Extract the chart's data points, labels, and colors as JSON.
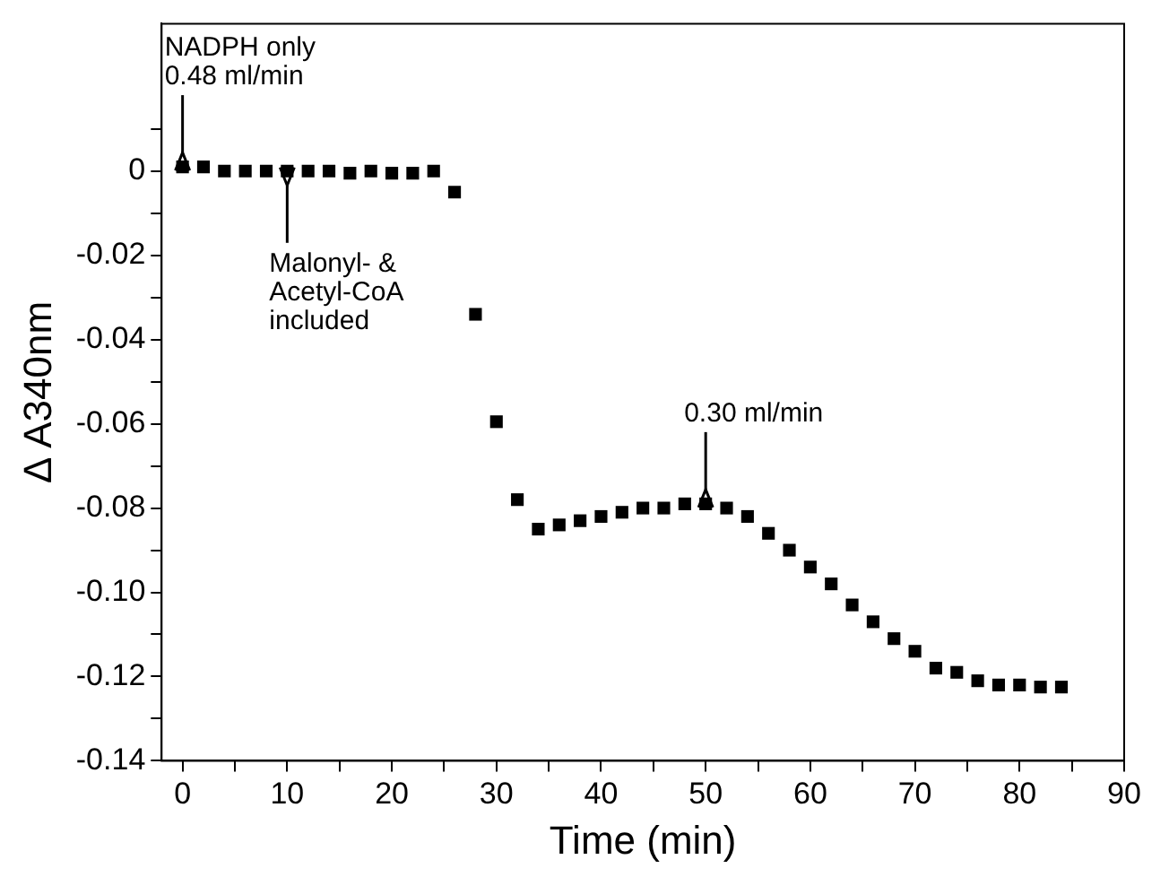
{
  "chart_data": {
    "type": "scatter",
    "xlabel": "Time (min)",
    "ylabel": "Δ A340nm",
    "x": [
      0,
      2,
      4,
      6,
      8,
      10,
      12,
      14,
      16,
      18,
      20,
      22,
      24,
      26,
      28,
      30,
      32,
      34,
      36,
      38,
      40,
      42,
      44,
      46,
      48,
      50,
      52,
      54,
      56,
      58,
      60,
      62,
      64,
      66,
      68,
      70,
      72,
      74,
      76,
      78,
      80,
      82,
      84
    ],
    "series": [
      {
        "color": "#000000",
        "values": [
          0.001,
          0.001,
          0,
          0,
          0,
          0,
          0,
          0,
          -0.0005,
          0,
          -0.0005,
          -0.0005,
          0,
          -0.005,
          -0.034,
          -0.0595,
          -0.078,
          -0.085,
          -0.084,
          -0.083,
          -0.082,
          -0.081,
          -0.08,
          -0.08,
          -0.079,
          -0.079,
          -0.08,
          -0.082,
          -0.086,
          -0.09,
          -0.094,
          -0.098,
          -0.103,
          -0.107,
          -0.111,
          -0.114,
          -0.118,
          -0.119,
          -0.121,
          -0.122,
          -0.122,
          -0.1225,
          -0.1225
        ]
      }
    ],
    "xlim": [
      -2,
      90
    ],
    "xticks": [
      0,
      {
        "value": 5,
        "label": null
      },
      10,
      {
        "value": 15,
        "label": null
      },
      20,
      {
        "value": 25,
        "label": null
      },
      30,
      {
        "value": 35,
        "label": null
      },
      40,
      {
        "value": 45,
        "label": null
      },
      50,
      {
        "value": 55,
        "label": null
      },
      60,
      {
        "value": 65,
        "label": null
      },
      70,
      {
        "value": 75,
        "label": null
      },
      80,
      {
        "value": 85,
        "label": null
      },
      90
    ],
    "ylim": [
      -0.14,
      0.035
    ],
    "yticks": [
      {
        "value": 0.01,
        "label": null
      },
      0,
      {
        "value": -0.01,
        "label": null
      },
      -0.02,
      {
        "value": -0.03,
        "label": null
      },
      -0.04,
      {
        "value": -0.05,
        "label": null
      },
      -0.06,
      {
        "value": -0.07,
        "label": null
      },
      -0.08,
      {
        "value": -0.09,
        "label": null
      },
      {
        "value": -0.1,
        "label": "-0.10"
      },
      {
        "value": -0.11,
        "label": null
      },
      -0.12,
      {
        "value": -0.13,
        "label": null
      },
      -0.14
    ],
    "marker": "square",
    "grid": false,
    "legend": false,
    "annotations": [
      {
        "text": "NADPH only\n0.48 ml/min",
        "x": 0,
        "y": 0.001
      },
      {
        "text": "Malonyl- &\nAcetyl-CoA\nincluded",
        "x": 10,
        "y": 0
      },
      {
        "text": "0.30 ml/min",
        "x": 50,
        "y": -0.079
      }
    ]
  }
}
